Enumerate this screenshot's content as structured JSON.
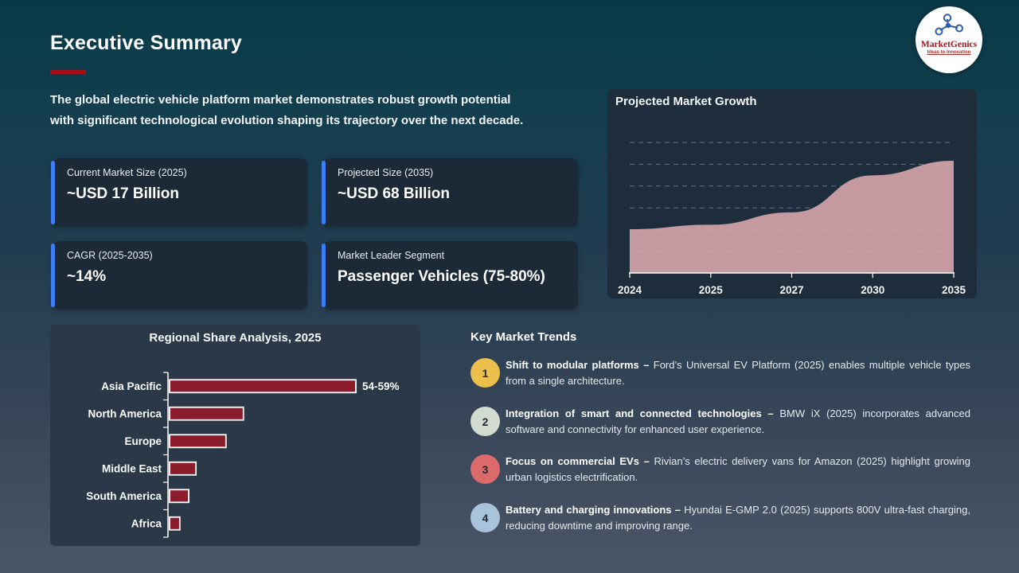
{
  "slide": {
    "title": "Executive Summary",
    "intro_line1": "The global electric vehicle platform market demonstrates robust growth potential",
    "intro_line2": "with significant technological evolution shaping its trajectory over the next decade."
  },
  "logo": {
    "name": "MarketGenics",
    "tagline": "Ideas to Innovation"
  },
  "stat_cards": [
    {
      "label": "Current Market Size (2025)",
      "value": "~USD 17 Billion"
    },
    {
      "label": "Projected Size (2035)",
      "value": "~USD 68 Billion"
    },
    {
      "label": "CAGR (2025-2035)",
      "value": "~14%"
    },
    {
      "label": "Market Leader Segment",
      "value": "Passenger Vehicles (75-80%)"
    }
  ],
  "chart_data": [
    {
      "type": "area",
      "title": "Projected Market Growth",
      "categories": [
        "2024",
        "2025",
        "2027",
        "2030",
        "2035"
      ],
      "values": [
        39,
        43,
        54,
        87,
        100
      ],
      "xlabel": "",
      "ylabel": "",
      "ylim": [
        0,
        115
      ],
      "grid": "dashed-horizontal",
      "legend": "none",
      "fill_color": "#c49aa0"
    },
    {
      "type": "bar",
      "title": "Regional Share Analysis, 2025",
      "orientation": "horizontal",
      "categories": [
        "Asia Pacific",
        "North America",
        "Europe",
        "Middle East",
        "South America",
        "Africa"
      ],
      "values": [
        56.5,
        22.4,
        17.1,
        8,
        5.8,
        3.1
      ],
      "data_labels": [
        "54-59%",
        "",
        "",
        "",
        "",
        ""
      ],
      "xlabel": "",
      "ylabel": "",
      "xlim": [
        0,
        60
      ],
      "grid": "off",
      "bar_color": "#8a1c2c",
      "bar_border": "#ffffff"
    }
  ],
  "trends": {
    "heading": "Key Market Trends",
    "items": [
      {
        "number": "1",
        "color": "#ecbf4d",
        "lead": "Shift to modular platforms –",
        "text": "Ford’s Universal EV Platform (2025) enables multiple vehicle types from a single architecture."
      },
      {
        "number": "2",
        "color": "#d3dbd0",
        "lead": "Integration of smart and connected technologies –",
        "text": "BMW iX (2025) incorporates advanced software and connectivity for enhanced user experience."
      },
      {
        "number": "3",
        "color": "#dc6a6a",
        "lead": "Focus on commercial EVs –",
        "text": "Rivian’s electric delivery vans for Amazon (2025) highlight growing urban logistics electrification."
      },
      {
        "number": "4",
        "color": "#a9c4da",
        "lead": "Battery and charging innovations –",
        "text": "Hyundai E-GMP 2.0 (2025) supports 800V ultra-fast charging, reducing downtime and improving range."
      }
    ]
  },
  "colors": {
    "background_top": "#083947",
    "background_bottom": "#4b5668",
    "title_underline": "#a60f15",
    "card_background": "#1c2936",
    "card_accent_blue": "#3f7df6",
    "growth_panel": "#1e2d3c",
    "regional_panel": "#2b3847",
    "area_fill": "#c49aa0",
    "bar_fill": "#8a1c2c",
    "logo_icon_blue": "#2e5fa9",
    "logo_text_red": "#9c1a24"
  }
}
